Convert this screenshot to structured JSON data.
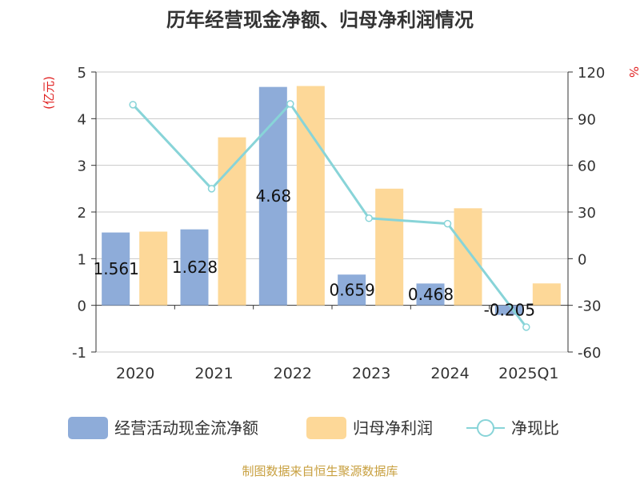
{
  "chart_data": {
    "type": "bar",
    "title": "历年经营现金净额、归母净利润情况",
    "y_left_unit": "(亿元)",
    "y_right_unit": "%",
    "categories": [
      "2020",
      "2021",
      "2022",
      "2023",
      "2024",
      "2025Q1"
    ],
    "ylim_left": [
      -1,
      5
    ],
    "yticks_left": [
      "-1",
      "0",
      "1",
      "2",
      "3",
      "4",
      "5"
    ],
    "ylim_right": [
      -60,
      120
    ],
    "yticks_right": [
      "-60",
      "-30",
      "0",
      "30",
      "60",
      "90",
      "120"
    ],
    "series": [
      {
        "name": "经营活动现金流净额",
        "type": "bar",
        "axis": "left",
        "values": [
          1.561,
          1.628,
          4.68,
          0.659,
          0.468,
          -0.205
        ],
        "labels": [
          "1.561",
          "1.628",
          "4.68",
          "0.659",
          "0.468",
          "-0.205"
        ]
      },
      {
        "name": "归母净利润",
        "type": "bar",
        "axis": "left",
        "values": [
          1.58,
          3.6,
          4.7,
          2.5,
          2.08,
          0.47
        ]
      },
      {
        "name": "净现比",
        "type": "line",
        "axis": "right",
        "values": [
          99,
          45,
          99.5,
          26,
          22.5,
          -44
        ]
      }
    ],
    "colors": {
      "bar1": "#8eacd9",
      "bar2": "#fdd898",
      "line": "#88d4d8"
    },
    "grid": true,
    "legend_position": "bottom"
  },
  "source": "制图数据来自恒生聚源数据库"
}
